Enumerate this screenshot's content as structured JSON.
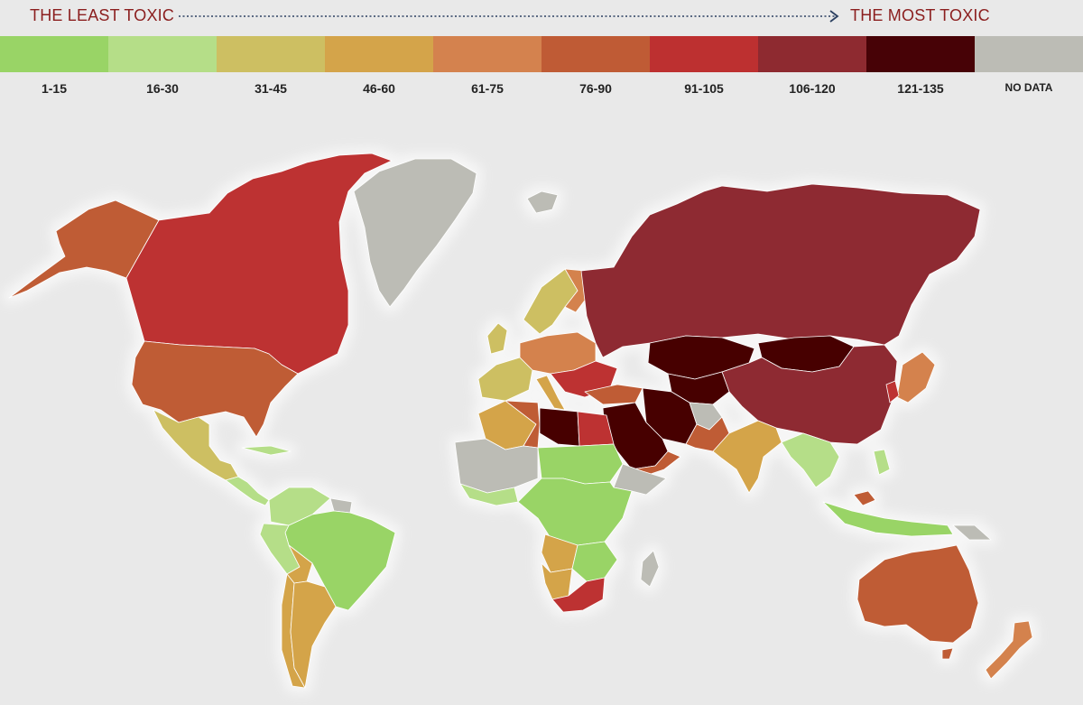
{
  "scale": {
    "least_label": "THE LEAST TOXIC",
    "most_label": "THE MOST TOXIC"
  },
  "legend": [
    {
      "label": "1-15",
      "color": "#99d466"
    },
    {
      "label": "16-30",
      "color": "#b5de88"
    },
    {
      "label": "31-45",
      "color": "#cdbf62"
    },
    {
      "label": "46-60",
      "color": "#d4a44a"
    },
    {
      "label": "61-75",
      "color": "#d4824e"
    },
    {
      "label": "76-90",
      "color": "#bf5b35"
    },
    {
      "label": "91-105",
      "color": "#bd3030"
    },
    {
      "label": "106-120",
      "color": "#8e2a30"
    },
    {
      "label": "121-135",
      "color": "#470206"
    },
    {
      "label": "NO DATA",
      "color": "#bcbcb5"
    }
  ],
  "colors": {
    "background": "#e9e9e9",
    "title": "#8b1e1e",
    "arrow": "#2a3f60",
    "land_glow": "#f6f6f6"
  }
}
